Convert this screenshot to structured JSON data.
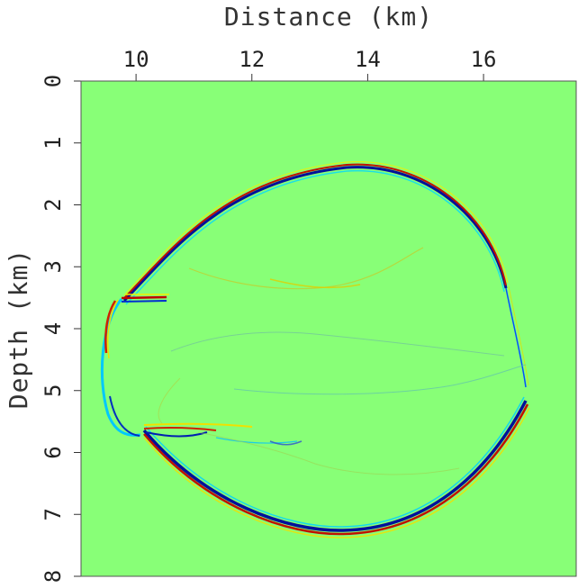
{
  "chart_data": {
    "type": "heatmap",
    "title": "",
    "xlabel": "Distance (km)",
    "ylabel": "Depth (km)",
    "xlim": [
      9.05,
      17.6
    ],
    "ylim": [
      8,
      0
    ],
    "x_ticks": [
      "10",
      "12",
      "14",
      "16"
    ],
    "x_tick_values": [
      10,
      12,
      14,
      16
    ],
    "y_ticks": [
      "0",
      "1",
      "2",
      "3",
      "4",
      "5",
      "6",
      "7",
      "8"
    ],
    "y_tick_values": [
      0,
      1,
      2,
      3,
      4,
      5,
      6,
      7,
      8
    ],
    "background_color": "#88ff77",
    "colormap": [
      "#00008b",
      "#0050ff",
      "#00ffff",
      "#88ff77",
      "#ffff00",
      "#ff4000",
      "#8b0000"
    ],
    "grid": false,
    "legend": "none"
  }
}
